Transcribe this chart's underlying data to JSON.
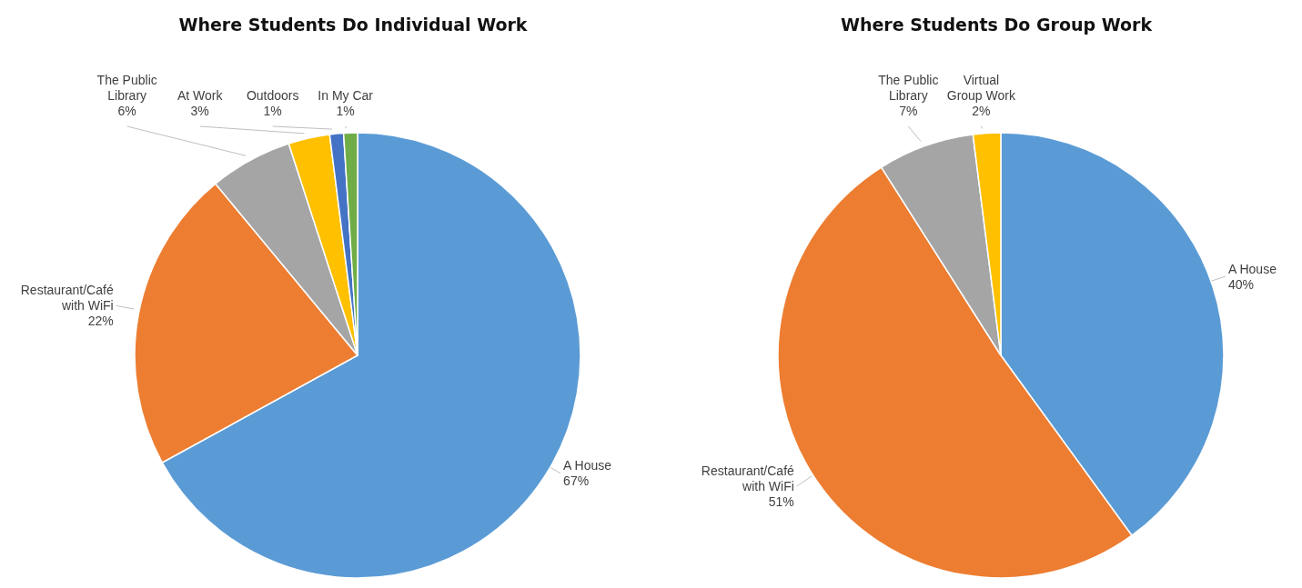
{
  "chart_data": [
    {
      "type": "pie",
      "title": "Where Students Do Individual Work",
      "categories": [
        "A House",
        "Restaurant/Café with WiFi",
        "The Public Library",
        "At Work",
        "Outdoors",
        "In My Car"
      ],
      "values": [
        67,
        22,
        6,
        3,
        1,
        1
      ],
      "colors": [
        "#5b9bd5",
        "#ed7d31",
        "#a5a5a5",
        "#ffc000",
        "#4472c4",
        "#70ad47"
      ],
      "value_labels": [
        "67%",
        "22%",
        "6%",
        "3%",
        "1%",
        "1%"
      ]
    },
    {
      "type": "pie",
      "title": "Where Students Do Group Work",
      "categories": [
        "A House",
        "Restaurant/Café with WiFi",
        "The Public Library",
        "Virtual Group Work"
      ],
      "values": [
        40,
        51,
        7,
        2
      ],
      "colors": [
        "#5b9bd5",
        "#ed7d31",
        "#a5a5a5",
        "#ffc000"
      ],
      "value_labels": [
        "40%",
        "51%",
        "7%",
        "2%"
      ]
    }
  ]
}
